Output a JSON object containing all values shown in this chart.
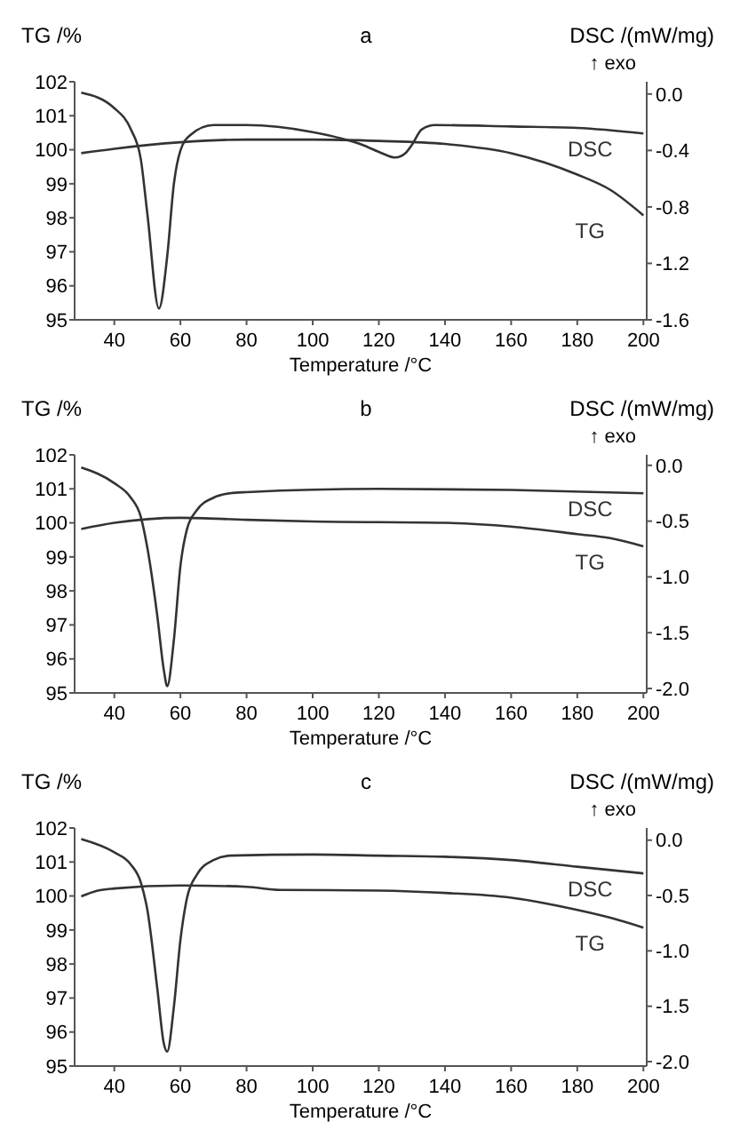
{
  "chart_data": [
    {
      "type": "line",
      "title": "a",
      "xlabel": "Temperature /°C",
      "ylabel": "TG /%",
      "y2label": "DSC /(mW/mg)",
      "annotations": [
        "↑ exo"
      ],
      "xlim": [
        28,
        201
      ],
      "xticks": [
        40,
        60,
        80,
        100,
        120,
        140,
        160,
        180,
        200
      ],
      "ylim": [
        95,
        102
      ],
      "yticks": [
        95,
        96,
        97,
        98,
        99,
        100,
        101,
        102
      ],
      "y2lim": [
        -1.6,
        0.087
      ],
      "y2ticks": [
        {
          "value": 0,
          "label": "0.0"
        },
        -0.4,
        -0.8,
        -1.2,
        -1.6
      ],
      "grid": false,
      "marker": "none",
      "line_style": "solid",
      "series": [
        {
          "name": "DSC",
          "color": "#333333",
          "axis": "y2",
          "x": [
            30,
            40,
            45,
            48,
            50,
            53.5,
            56,
            58,
            60,
            63,
            70,
            80,
            100,
            115,
            120,
            125,
            128,
            130,
            133,
            137,
            160,
            180,
            200
          ],
          "values": [
            0.01,
            -0.1,
            -0.25,
            -0.46,
            -0.85,
            -1.52,
            -1.15,
            -0.64,
            -0.4,
            -0.29,
            -0.22,
            -0.22,
            -0.27,
            -0.36,
            -0.41,
            -0.45,
            -0.42,
            -0.36,
            -0.25,
            -0.22,
            -0.23,
            -0.24,
            -0.28
          ]
        },
        {
          "name": "TG",
          "color": "#333333",
          "x": [
            30,
            40,
            60,
            80,
            100,
            120,
            140,
            160,
            170,
            180,
            190,
            200
          ],
          "values": [
            99.9,
            100.03,
            100.22,
            100.3,
            100.3,
            100.26,
            100.17,
            99.9,
            99.63,
            99.27,
            98.82,
            98.07
          ]
        }
      ]
    },
    {
      "type": "line",
      "title": "b",
      "xlabel": "Temperature /°C",
      "ylabel": "TG /%",
      "y2label": "DSC /(mW/mg)",
      "annotations": [
        "↑ exo"
      ],
      "xlim": [
        28,
        201
      ],
      "xticks": [
        40,
        60,
        80,
        100,
        120,
        140,
        160,
        180,
        200
      ],
      "ylim": [
        95,
        102
      ],
      "yticks": [
        95,
        96,
        97,
        98,
        99,
        100,
        101,
        102
      ],
      "y2lim": [
        -2.04,
        0.094
      ],
      "y2ticks": [
        {
          "value": 0,
          "label": "0.0"
        },
        -0.5,
        {
          "value": -1,
          "label": "-1.0"
        },
        -1.5,
        {
          "value": -2,
          "label": "-2.0"
        }
      ],
      "grid": false,
      "marker": "none",
      "line_style": "solid",
      "series": [
        {
          "name": "DSC",
          "color": "#333333",
          "axis": "y2",
          "x": [
            30,
            40,
            45,
            48,
            50,
            53,
            55,
            56,
            58,
            60,
            62,
            65,
            70,
            75,
            80,
            120,
            160,
            200
          ],
          "values": [
            -0.02,
            -0.16,
            -0.29,
            -0.46,
            -0.74,
            -1.35,
            -1.84,
            -1.98,
            -1.57,
            -0.9,
            -0.57,
            -0.4,
            -0.29,
            -0.25,
            -0.24,
            -0.21,
            -0.22,
            -0.25
          ]
        },
        {
          "name": "TG",
          "color": "#333333",
          "x": [
            30,
            40,
            60,
            80,
            100,
            140,
            160,
            180,
            190,
            200
          ],
          "values": [
            99.82,
            100,
            100.15,
            100.09,
            100.04,
            100,
            99.89,
            99.67,
            99.55,
            99.31
          ]
        }
      ]
    },
    {
      "type": "line",
      "title": "c",
      "xlabel": "Temperature /°C",
      "ylabel": "TG /%",
      "y2label": "DSC /(mW/mg)",
      "annotations": [
        "↑ exo"
      ],
      "xlim": [
        28,
        201
      ],
      "xticks": [
        40,
        60,
        80,
        100,
        120,
        140,
        160,
        180,
        200
      ],
      "ylim": [
        95,
        102
      ],
      "yticks": [
        95,
        96,
        97,
        98,
        99,
        100,
        101,
        102
      ],
      "y2lim": [
        -2.04,
        0.11
      ],
      "y2ticks": [
        {
          "value": 0,
          "label": "0.0"
        },
        -0.5,
        {
          "value": -1,
          "label": "-1.0"
        },
        -1.5,
        {
          "value": -2,
          "label": "-2.0"
        }
      ],
      "grid": false,
      "marker": "none",
      "line_style": "solid",
      "series": [
        {
          "name": "DSC",
          "color": "#333333",
          "axis": "y2",
          "x": [
            30,
            40,
            45,
            48,
            50,
            53,
            55,
            56,
            58,
            60,
            62,
            65,
            70,
            75,
            100,
            120,
            140,
            160,
            180,
            200
          ],
          "values": [
            0.01,
            -0.11,
            -0.22,
            -0.38,
            -0.63,
            -1.34,
            -1.84,
            -1.91,
            -1.51,
            -0.9,
            -0.52,
            -0.31,
            -0.18,
            -0.14,
            -0.13,
            -0.14,
            -0.15,
            -0.18,
            -0.24,
            -0.3
          ]
        },
        {
          "name": "TG",
          "color": "#333333",
          "x": [
            30,
            35,
            40,
            60,
            80,
            90,
            120,
            140,
            160,
            180,
            190,
            200
          ],
          "values": [
            99.99,
            100.16,
            100.22,
            100.31,
            100.27,
            100.18,
            100.16,
            100.09,
            99.95,
            99.59,
            99.36,
            99.07
          ]
        }
      ]
    }
  ]
}
